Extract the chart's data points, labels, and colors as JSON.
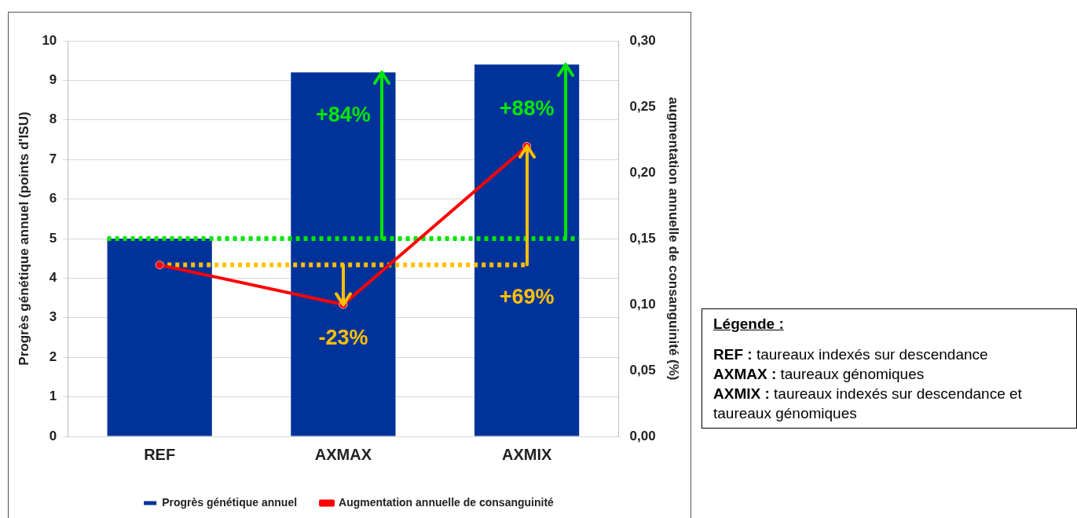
{
  "chart_data": {
    "type": "bar",
    "categories": [
      "REF",
      "AXMAX",
      "AXMIX"
    ],
    "series": [
      {
        "name": "Progrès génétique annuel",
        "color": "#00339a",
        "values": [
          5.0,
          9.2,
          9.4
        ]
      },
      {
        "name": "Augmentation annuelle de consanguinité",
        "type": "line",
        "axis": "y2",
        "color": "#ff0000",
        "marker": "circle",
        "values": [
          0.13,
          0.1,
          0.22
        ]
      }
    ],
    "ylabel": "Progrès génétique annuel (points d'ISU)",
    "y2label": "augmentation annuelle de consanguinité (%)",
    "ylim": [
      0,
      10
    ],
    "yticks": [
      0,
      1,
      2,
      3,
      4,
      5,
      6,
      7,
      8,
      9,
      10
    ],
    "y2lim": [
      0,
      0.3
    ],
    "y2ticks": [
      {
        "value": 0,
        "label": "0,00"
      },
      {
        "value": 0.05,
        "label": "0,05"
      },
      {
        "value": 0.1,
        "label": "0,10"
      },
      {
        "value": 0.15,
        "label": "0,15"
      },
      {
        "value": 0.2,
        "label": "0,20"
      },
      {
        "value": 0.25,
        "label": "0,25"
      },
      {
        "value": 0.3,
        "label": "0,30"
      }
    ],
    "ref_lines": [
      {
        "axis": "y",
        "value": 5,
        "color": "#00e600",
        "line_style": "dotted"
      },
      {
        "axis": "y2",
        "value": 0.13,
        "color": "#ffc000",
        "line_style": "dotted"
      }
    ],
    "annotations": [
      "+84%",
      "+88%",
      {
        "text": "-23%",
        "x": "AXMAX",
        "y": 3.3
      },
      {
        "text": "+69%",
        "x": "AXMIX",
        "y": 7.3
      },
      "Légende :",
      "REF : taureaux indexés sur descendance",
      "AXMAX : taureaux génomiques",
      "AXMIX : taureaux indexés sur descendance et taureaux génomiques"
    ],
    "grid": "y",
    "legend": "bottom"
  }
}
